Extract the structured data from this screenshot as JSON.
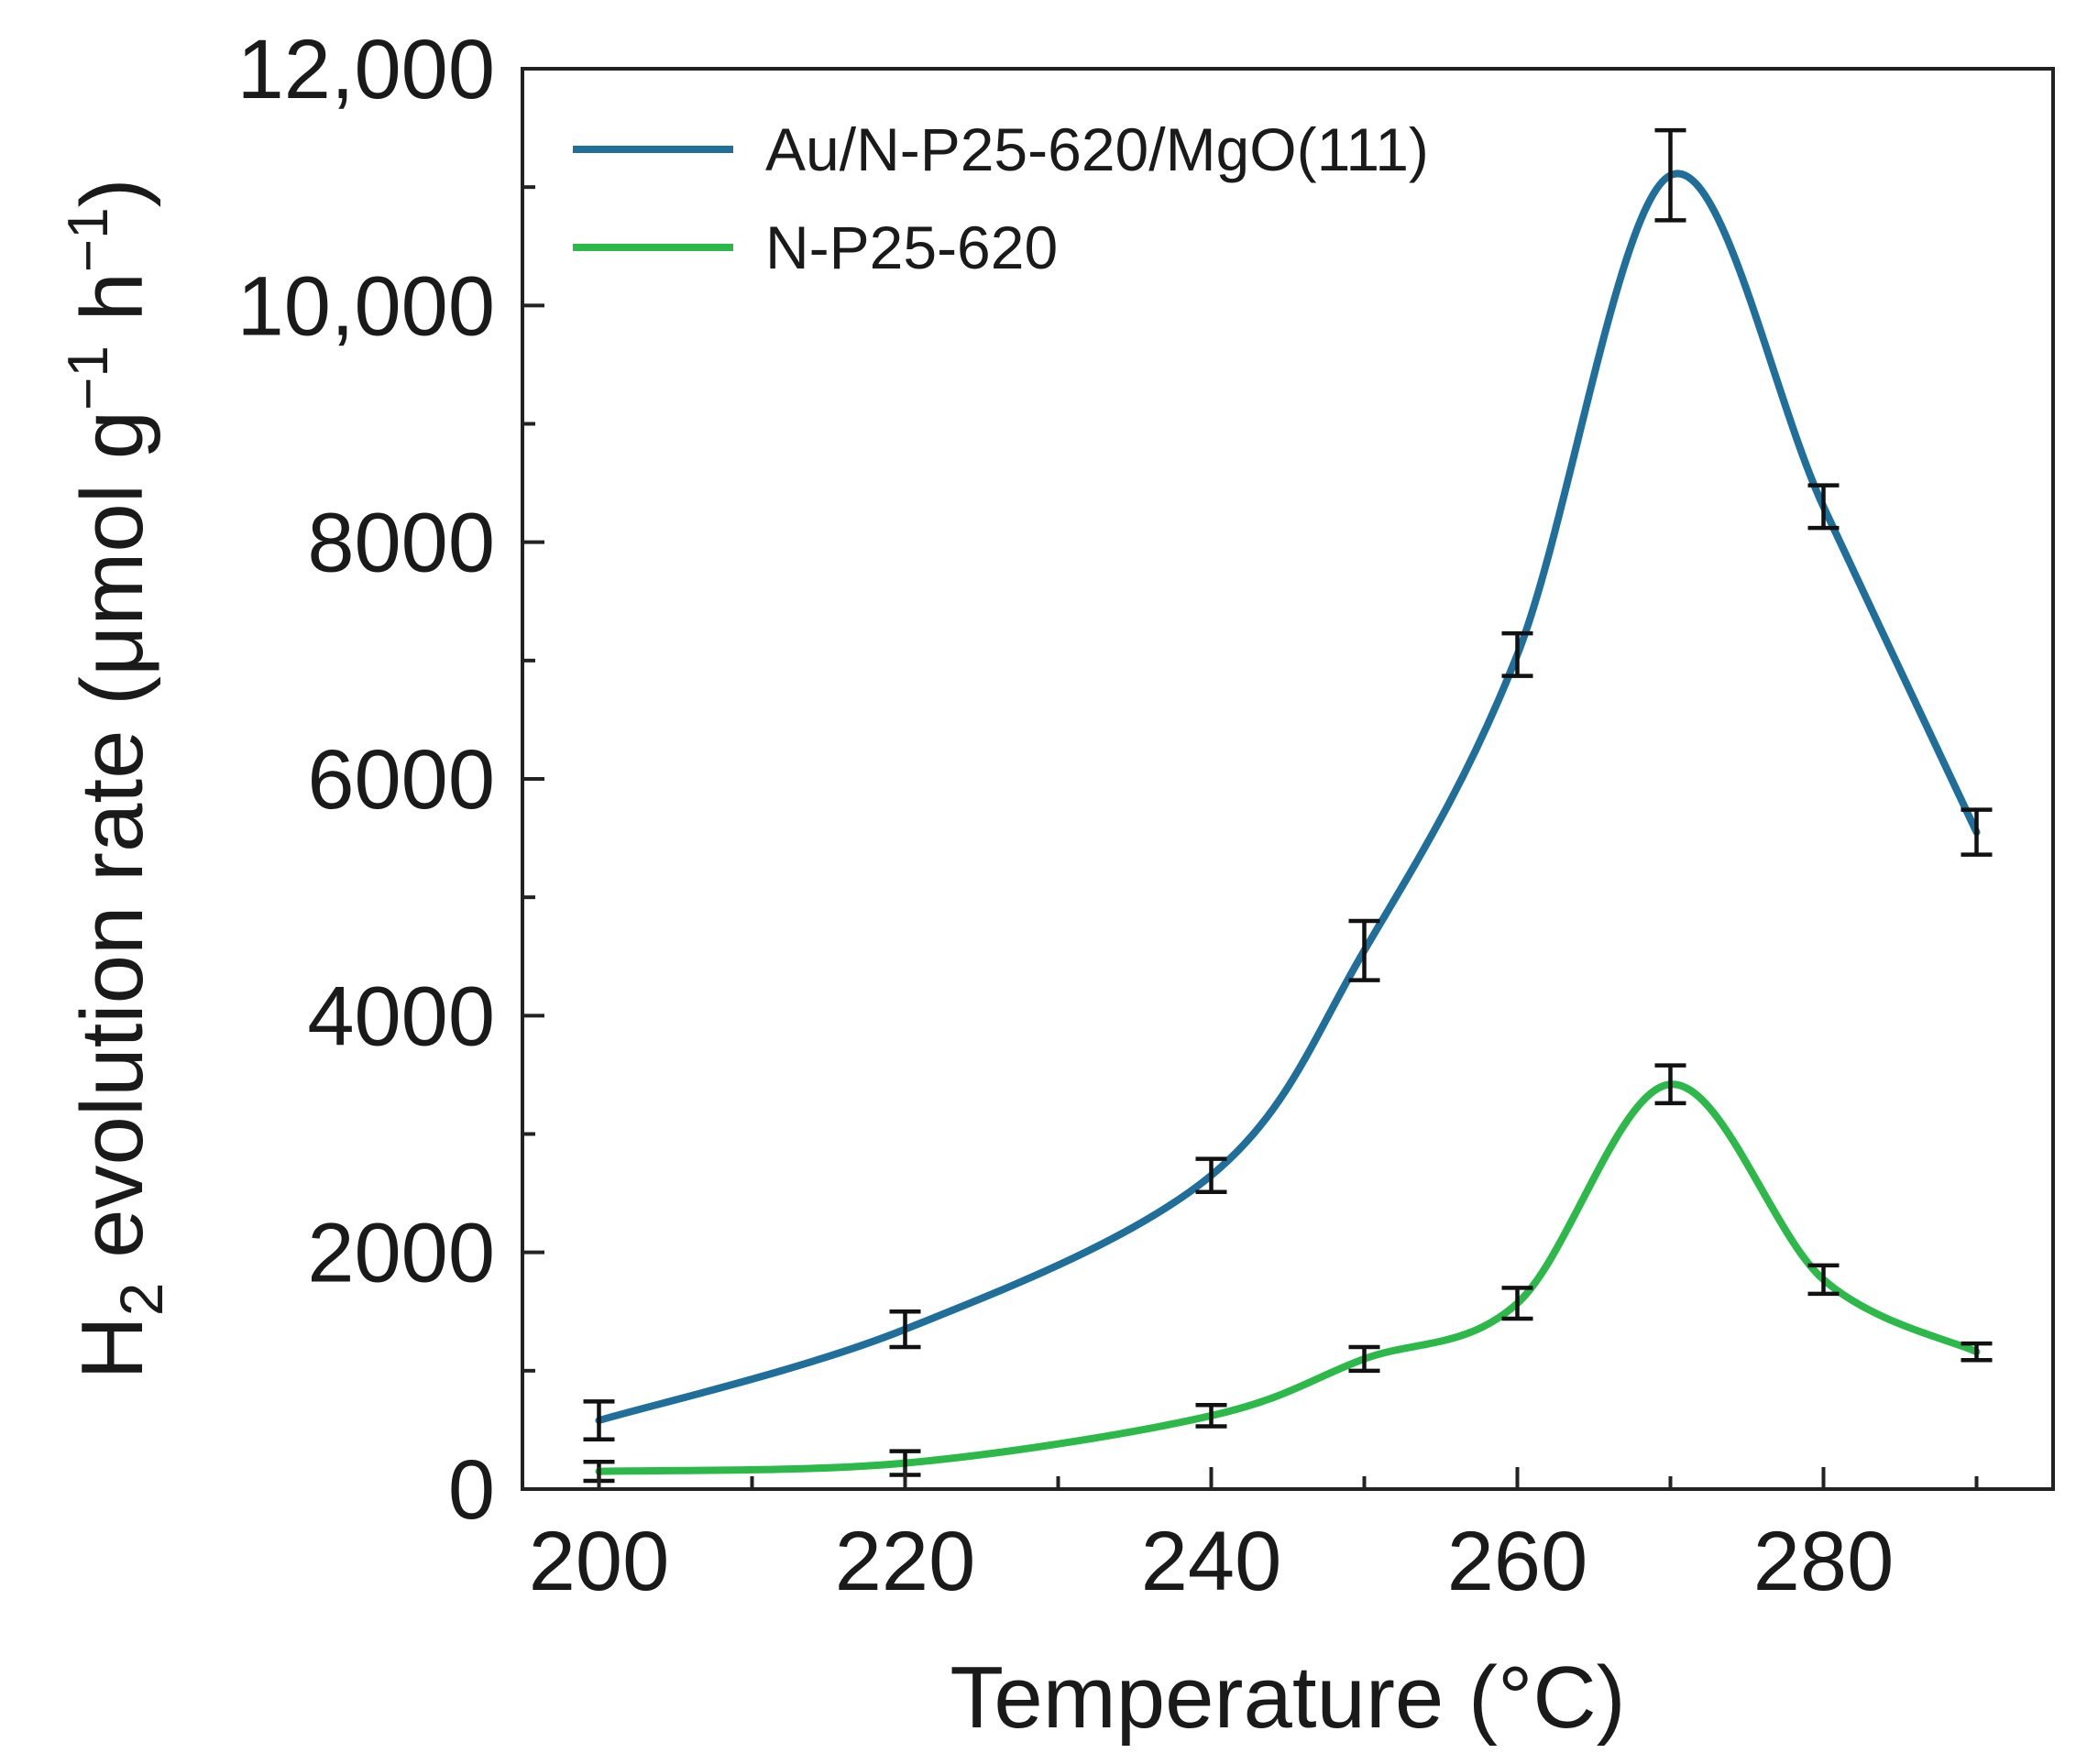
{
  "chart_data": {
    "type": "line",
    "title": "",
    "xlabel": "Temperature (°C)",
    "ylabel": {
      "main": "H",
      "sub": "2",
      "rest": " evolution rate (μmol g",
      "sup1": "−1",
      "mid": " h",
      "sup2": "−1",
      "end": ")"
    },
    "xlim": [
      195,
      295
    ],
    "ylim": [
      0,
      12000
    ],
    "x_ticks": [
      200,
      220,
      240,
      260,
      280
    ],
    "x_minor_ticks": [
      210,
      230,
      250,
      270,
      290
    ],
    "x_tick_labels": [
      "200",
      "220",
      "240",
      "260",
      "280"
    ],
    "y_ticks": [
      0,
      2000,
      4000,
      6000,
      8000,
      10000,
      12000
    ],
    "y_minor_ticks": [
      1000,
      3000,
      5000,
      7000,
      9000,
      11000
    ],
    "y_tick_labels": [
      "0",
      "2000",
      "4000",
      "6000",
      "8000",
      "10,000",
      "12,000"
    ],
    "legend_position": "top-left",
    "grid": false,
    "series": [
      {
        "name": "Au/N-P25-620/MgO(111)",
        "color": "#1f6f9a",
        "x": [
          200,
          220,
          240,
          250,
          260,
          270,
          280,
          290
        ],
        "y": [
          580,
          1350,
          2650,
          4550,
          7050,
          11100,
          8300,
          5550
        ],
        "yerr": [
          160,
          150,
          140,
          250,
          180,
          380,
          180,
          190
        ]
      },
      {
        "name": "N-P25-620",
        "color": "#2db84a",
        "x": [
          200,
          220,
          240,
          250,
          260,
          270,
          280,
          290
        ],
        "y": [
          150,
          220,
          620,
          1100,
          1570,
          3420,
          1770,
          1160
        ],
        "yerr": [
          80,
          100,
          90,
          100,
          130,
          160,
          120,
          70
        ]
      }
    ]
  }
}
